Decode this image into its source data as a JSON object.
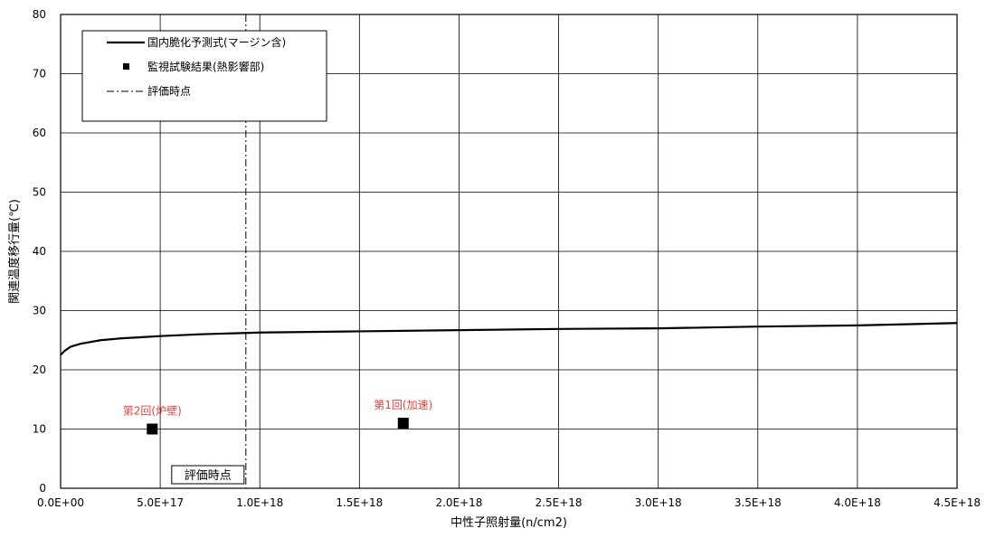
{
  "chart_data": {
    "type": "line",
    "xlabel": "中性子照射量(n/cm2)",
    "ylabel": "関連温度移行量(℃)",
    "xlim": [
      0,
      4.5e+18
    ],
    "ylim": [
      0,
      80
    ],
    "x_ticks": [
      {
        "value": 0,
        "label": "0.0E+00"
      },
      {
        "value": 5e+17,
        "label": "5.0E+17"
      },
      {
        "value": 1e+18,
        "label": "1.0E+18"
      },
      {
        "value": 1.5e+18,
        "label": "1.5E+18"
      },
      {
        "value": 2e+18,
        "label": "2.0E+18"
      },
      {
        "value": 2.5e+18,
        "label": "2.5E+18"
      },
      {
        "value": 3e+18,
        "label": "3.0E+18"
      },
      {
        "value": 3.5e+18,
        "label": "3.5E+18"
      },
      {
        "value": 4e+18,
        "label": "4.0E+18"
      },
      {
        "value": 4.5e+18,
        "label": "4.5E+18"
      }
    ],
    "y_ticks": [
      {
        "value": 0,
        "label": "0"
      },
      {
        "value": 10,
        "label": "10"
      },
      {
        "value": 20,
        "label": "20"
      },
      {
        "value": 30,
        "label": "30"
      },
      {
        "value": 40,
        "label": "40"
      },
      {
        "value": 50,
        "label": "50"
      },
      {
        "value": 60,
        "label": "60"
      },
      {
        "value": 70,
        "label": "70"
      },
      {
        "value": 80,
        "label": "80"
      }
    ],
    "grid": true,
    "legend_position": "top-left",
    "legend": [
      {
        "label": "国内脆化予測式(マージン含)",
        "marker": "line"
      },
      {
        "label": "監視試験結果(熱影響部)",
        "marker": "square"
      },
      {
        "label": "評価時点",
        "marker": "dashdot"
      }
    ],
    "prediction_curve": {
      "name": "国内脆化予測式(マージン含)",
      "points": [
        {
          "x": 0,
          "y": 22.5
        },
        {
          "x": 2e+16,
          "y": 23.2
        },
        {
          "x": 5e+16,
          "y": 23.9
        },
        {
          "x": 1e+17,
          "y": 24.4
        },
        {
          "x": 2e+17,
          "y": 25.0
        },
        {
          "x": 3e+17,
          "y": 25.3
        },
        {
          "x": 4e+17,
          "y": 25.5
        },
        {
          "x": 5e+17,
          "y": 25.7
        },
        {
          "x": 7e+17,
          "y": 26.0
        },
        {
          "x": 1e+18,
          "y": 26.3
        },
        {
          "x": 1.5e+18,
          "y": 26.5
        },
        {
          "x": 2e+18,
          "y": 26.7
        },
        {
          "x": 2.5e+18,
          "y": 26.9
        },
        {
          "x": 3e+18,
          "y": 27.0
        },
        {
          "x": 3.5e+18,
          "y": 27.3
        },
        {
          "x": 4e+18,
          "y": 27.5
        },
        {
          "x": 4.5e+18,
          "y": 27.9
        }
      ],
      "color": "#000000"
    },
    "test_results": {
      "name": "監視試験結果(熱影響部)",
      "points": [
        {
          "x": 4.6e+17,
          "y": 10,
          "label": "第2回(炉壁)"
        },
        {
          "x": 1.72e+18,
          "y": 11,
          "label": "第1回(加速)"
        }
      ],
      "marker_color": "#000000",
      "label_color": "#e8413c"
    },
    "evaluation_point": {
      "x": 9.3e+17,
      "label": "評価時点"
    }
  }
}
